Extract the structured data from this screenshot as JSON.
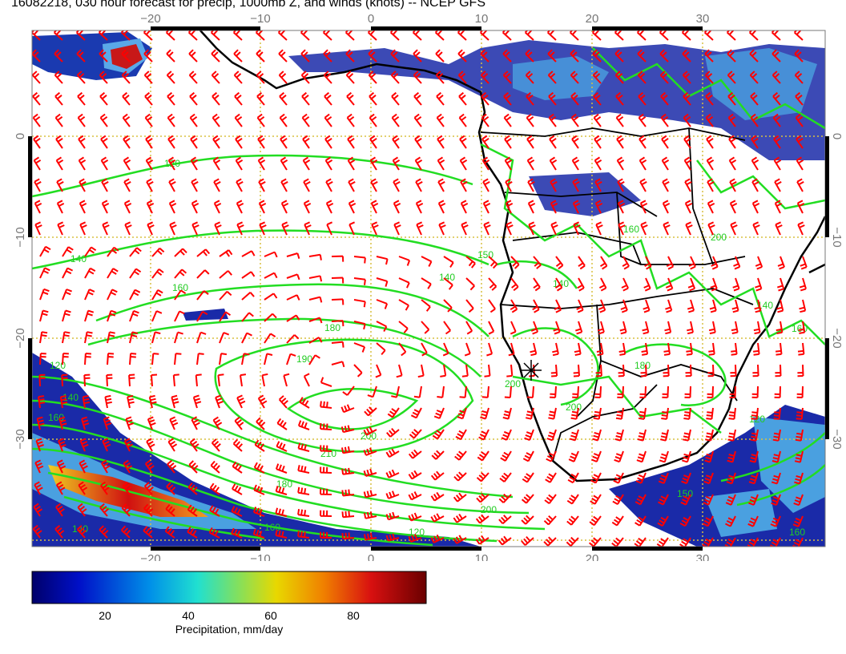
{
  "title": "16082218, 030 hour forecast for precip, 1000mb Z, and winds (knots) -- NCEP GFS",
  "map": {
    "lon_ticks": [
      "−20",
      "−10",
      "0",
      "10",
      "20",
      "30"
    ],
    "lat_ticks": [
      "0",
      "−10",
      "−20",
      "−30"
    ],
    "contour_labels": [
      "120",
      "140",
      "160",
      "180",
      "190",
      "200",
      "210",
      "120",
      "140",
      "160",
      "180",
      "200",
      "140",
      "160",
      "120",
      "140",
      "150",
      "200",
      "200",
      "160",
      "180",
      "200",
      "140",
      "160",
      "120",
      "150",
      "160",
      "140"
    ],
    "colors": {
      "contour": "#22dd22",
      "barb": "#ff0000",
      "land_line": "#000000",
      "grid": "#d8c040",
      "precip_light": "#1a2aa8",
      "precip_mid": "#3aa0e0",
      "precip_heavy": "#c01010"
    }
  },
  "colorbar": {
    "ticks": [
      "20",
      "40",
      "60",
      "80"
    ],
    "label": "Precipitation, mm/day",
    "colors": [
      "#00006a",
      "#0010c8",
      "#0090e8",
      "#20e0d0",
      "#80e060",
      "#e8d800",
      "#f08000",
      "#d81010",
      "#6a0000"
    ]
  }
}
